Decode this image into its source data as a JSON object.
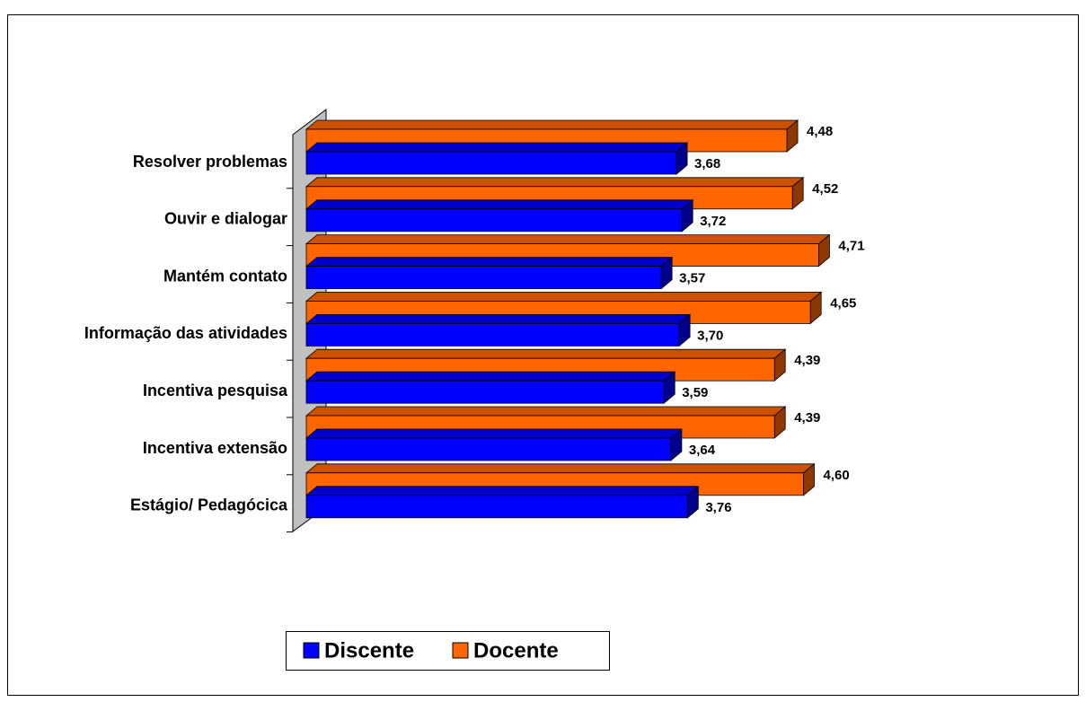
{
  "chart_data": {
    "type": "bar3d_horizontal",
    "categories": [
      "Resolver problemas",
      "Ouvir e dialogar",
      "Mantém contato",
      "Informação das atividades",
      "Incentiva pesquisa",
      "Incentiva extensão",
      "Estágio/ Pedagócica"
    ],
    "series": [
      {
        "name": "Discente",
        "color": "#0000ff",
        "values": [
          3.68,
          3.72,
          3.57,
          3.7,
          3.59,
          3.64,
          3.76
        ],
        "value_labels": [
          "3,68",
          "3,72",
          "3,57",
          "3,70",
          "3,59",
          "3,64",
          "3,76"
        ]
      },
      {
        "name": "Docente",
        "color": "#ff6600",
        "values": [
          4.48,
          4.52,
          4.71,
          4.65,
          4.39,
          4.39,
          4.6
        ],
        "value_labels": [
          "4,48",
          "4,52",
          "4,71",
          "4,65",
          "4,39",
          "4,39",
          "4,60"
        ]
      }
    ],
    "xlim": [
      1,
      5
    ],
    "legend": "bottom"
  }
}
